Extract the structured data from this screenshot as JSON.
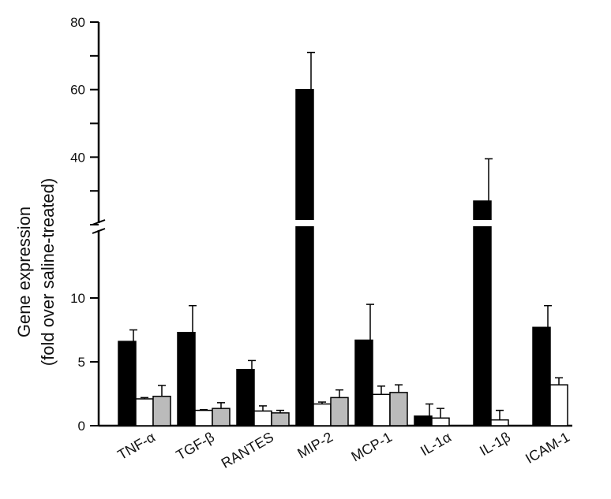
{
  "chart_data": {
    "type": "bar",
    "title": "",
    "ylabel_line1": "Gene expression",
    "ylabel_line2": "(fold over saline-treated)",
    "categories": [
      "TNF-α",
      "TGF-β",
      "RANTES",
      "MIP-2",
      "MCP-1",
      "IL-1α",
      "IL-1β",
      "ICAM-1"
    ],
    "series": [
      {
        "color": "#000000",
        "values": [
          6.6,
          7.3,
          4.4,
          60.0,
          6.7,
          0.75,
          27.0,
          7.7
        ],
        "errors": [
          0.9,
          2.1,
          0.7,
          11.0,
          2.8,
          0.95,
          12.5,
          1.7
        ]
      },
      {
        "color": "#ffffff",
        "values": [
          2.1,
          1.2,
          1.15,
          1.7,
          2.45,
          0.6,
          0.45,
          3.2
        ],
        "errors": [
          0.1,
          0.05,
          0.4,
          0.15,
          0.65,
          0.75,
          0.75,
          0.55
        ]
      },
      {
        "color": "#bbbbbb",
        "values": [
          2.3,
          1.35,
          1.0,
          2.2,
          2.6,
          null,
          null,
          null
        ],
        "errors": [
          0.85,
          0.45,
          0.2,
          0.6,
          0.6,
          null,
          null,
          null
        ]
      }
    ],
    "yticks_lower": [
      "0",
      "5",
      "10"
    ],
    "yticks_upper": [
      "40",
      "60",
      "80"
    ],
    "ylim_lower": [
      0,
      15
    ],
    "ylim_upper": [
      20,
      80
    ],
    "axis_break": true,
    "legend": "none",
    "grid": false
  }
}
